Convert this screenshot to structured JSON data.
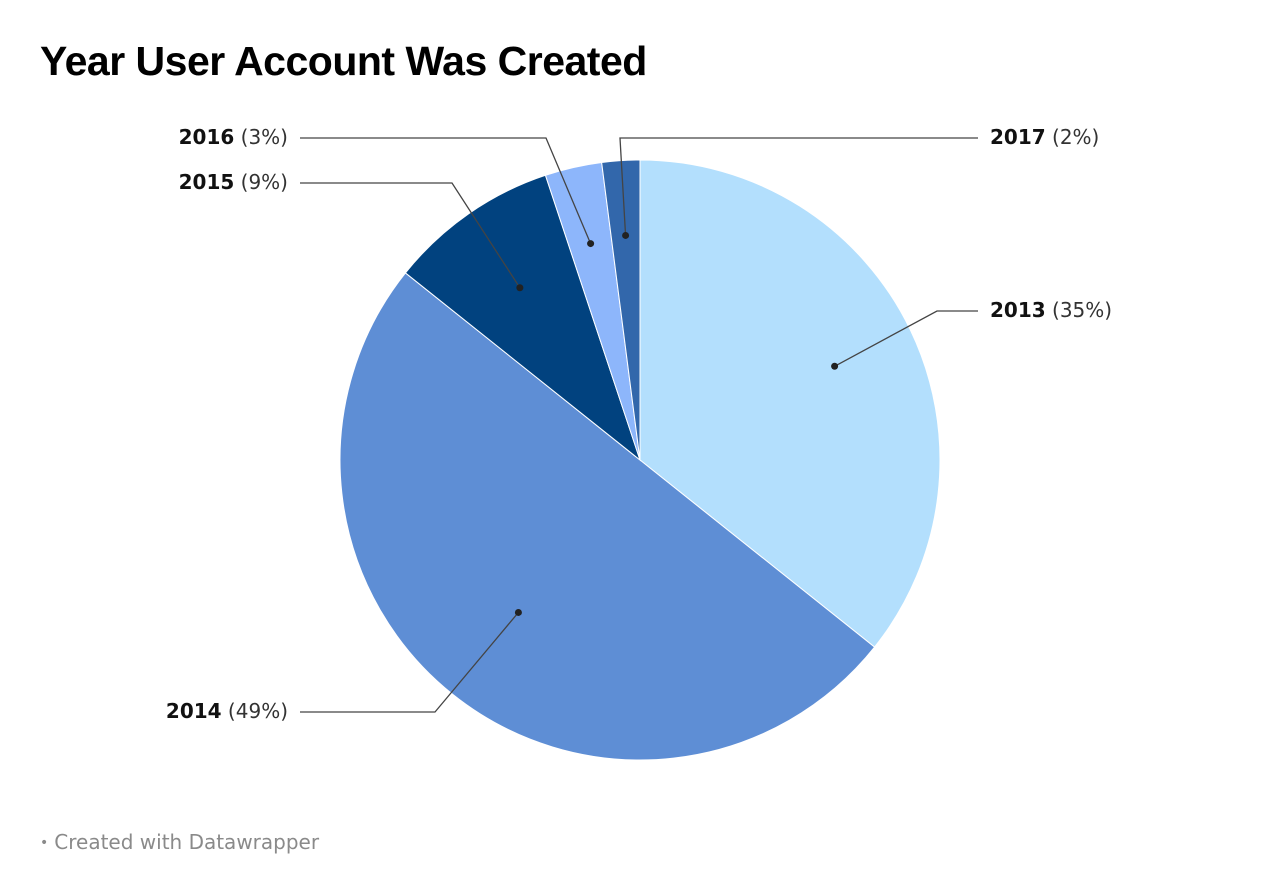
{
  "title": "Year User Account Was Created",
  "footer": {
    "credit": "Created with Datawrapper"
  },
  "chart_data": {
    "type": "pie",
    "title": "Year User Account Was Created",
    "slices": [
      {
        "label": "2013",
        "value": 35,
        "pct_label": "(35%)",
        "color": "#b3dffd"
      },
      {
        "label": "2014",
        "value": 49,
        "pct_label": "(49%)",
        "color": "#5e8ed5"
      },
      {
        "label": "2015",
        "value": 9,
        "pct_label": "(9%)",
        "color": "#01427f"
      },
      {
        "label": "2016",
        "value": 3,
        "pct_label": "(3%)",
        "color": "#8db6fb"
      },
      {
        "label": "2017",
        "value": 2,
        "pct_label": "(2%)",
        "color": "#3267ab"
      }
    ]
  }
}
